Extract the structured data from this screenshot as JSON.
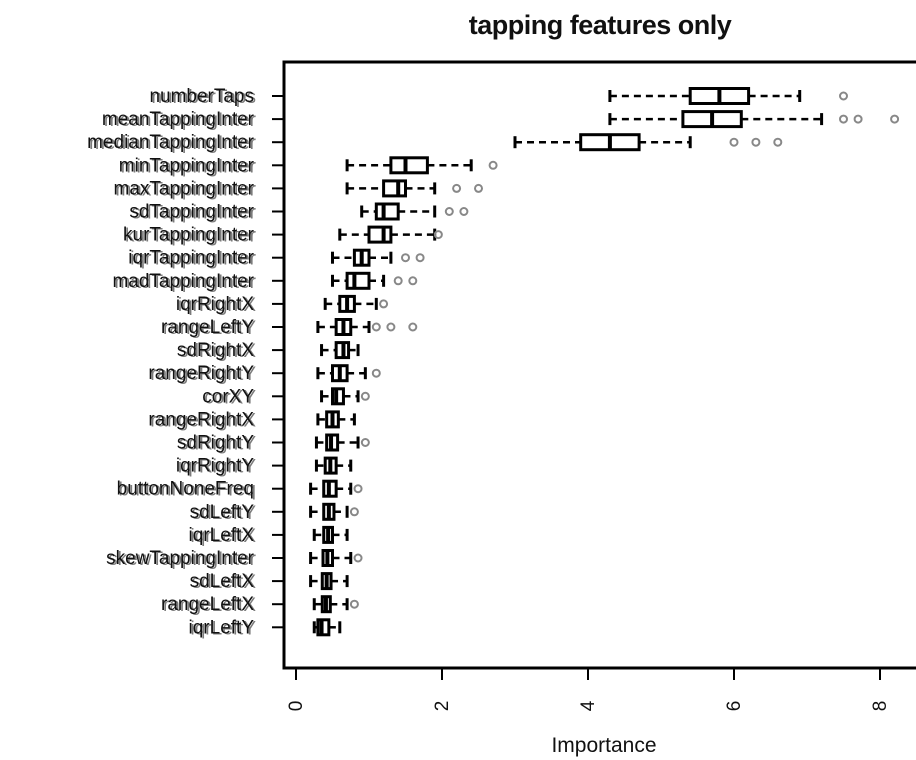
{
  "chart_data": {
    "type": "boxplot",
    "orientation": "horizontal",
    "title": "tapping features only",
    "xlabel": "Importance",
    "ylabel": "",
    "xlim": [
      -0.2,
      8.4
    ],
    "xticks": [
      "0",
      "2",
      "4",
      "6",
      "8"
    ],
    "grid": false,
    "legend": "none",
    "colors": {
      "box": "#000000",
      "outlier": "#888888",
      "label_shadow": "#c8a070"
    },
    "features": [
      {
        "name": "numberTaps",
        "whisker_low": 4.3,
        "q1": 5.4,
        "median": 5.8,
        "q3": 6.2,
        "whisker_high": 6.9,
        "outliers": [
          7.5
        ]
      },
      {
        "name": "meanTappingInter",
        "whisker_low": 4.3,
        "q1": 5.3,
        "median": 5.7,
        "q3": 6.1,
        "whisker_high": 7.2,
        "outliers": [
          7.5,
          7.7,
          8.2
        ]
      },
      {
        "name": "medianTappingInter",
        "whisker_low": 3.0,
        "q1": 3.9,
        "median": 4.3,
        "q3": 4.7,
        "whisker_high": 5.4,
        "outliers": [
          6.0,
          6.3,
          6.6
        ]
      },
      {
        "name": "minTappingInter",
        "whisker_low": 0.7,
        "q1": 1.3,
        "median": 1.5,
        "q3": 1.8,
        "whisker_high": 2.4,
        "outliers": [
          2.7
        ]
      },
      {
        "name": "maxTappingInter",
        "whisker_low": 0.7,
        "q1": 1.2,
        "median": 1.4,
        "q3": 1.5,
        "whisker_high": 1.9,
        "outliers": [
          2.2,
          2.5
        ]
      },
      {
        "name": "sdTappingInter",
        "whisker_low": 0.9,
        "q1": 1.1,
        "median": 1.2,
        "q3": 1.4,
        "whisker_high": 1.9,
        "outliers": [
          2.1,
          2.3
        ]
      },
      {
        "name": "kurTappingInter",
        "whisker_low": 0.6,
        "q1": 1.0,
        "median": 1.2,
        "q3": 1.3,
        "whisker_high": 1.9,
        "outliers": [
          1.95
        ]
      },
      {
        "name": "iqrTappingInter",
        "whisker_low": 0.5,
        "q1": 0.8,
        "median": 0.9,
        "q3": 1.0,
        "whisker_high": 1.3,
        "outliers": [
          1.5,
          1.7
        ]
      },
      {
        "name": "madTappingInter",
        "whisker_low": 0.5,
        "q1": 0.7,
        "median": 0.8,
        "q3": 1.0,
        "whisker_high": 1.2,
        "outliers": [
          1.4,
          1.6
        ]
      },
      {
        "name": "iqrRightX",
        "whisker_low": 0.4,
        "q1": 0.6,
        "median": 0.7,
        "q3": 0.8,
        "whisker_high": 1.1,
        "outliers": [
          1.2
        ]
      },
      {
        "name": "rangeLeftY",
        "whisker_low": 0.3,
        "q1": 0.55,
        "median": 0.65,
        "q3": 0.75,
        "whisker_high": 1.0,
        "outliers": [
          1.1,
          1.3,
          1.6
        ]
      },
      {
        "name": "sdRightX",
        "whisker_low": 0.35,
        "q1": 0.55,
        "median": 0.65,
        "q3": 0.72,
        "whisker_high": 0.85,
        "outliers": []
      },
      {
        "name": "rangeRightY",
        "whisker_low": 0.3,
        "q1": 0.5,
        "median": 0.6,
        "q3": 0.7,
        "whisker_high": 0.95,
        "outliers": [
          1.1
        ]
      },
      {
        "name": "corXY",
        "whisker_low": 0.35,
        "q1": 0.5,
        "median": 0.55,
        "q3": 0.65,
        "whisker_high": 0.85,
        "outliers": [
          0.95
        ]
      },
      {
        "name": "rangeRightX",
        "whisker_low": 0.3,
        "q1": 0.42,
        "median": 0.5,
        "q3": 0.58,
        "whisker_high": 0.8,
        "outliers": []
      },
      {
        "name": "sdRightY",
        "whisker_low": 0.28,
        "q1": 0.42,
        "median": 0.48,
        "q3": 0.57,
        "whisker_high": 0.85,
        "outliers": [
          0.95
        ]
      },
      {
        "name": "iqrRightY",
        "whisker_low": 0.28,
        "q1": 0.4,
        "median": 0.47,
        "q3": 0.55,
        "whisker_high": 0.75,
        "outliers": []
      },
      {
        "name": "buttonNoneFreq",
        "whisker_low": 0.2,
        "q1": 0.38,
        "median": 0.45,
        "q3": 0.55,
        "whisker_high": 0.75,
        "outliers": [
          0.85
        ]
      },
      {
        "name": "sdLeftY",
        "whisker_low": 0.2,
        "q1": 0.38,
        "median": 0.45,
        "q3": 0.52,
        "whisker_high": 0.7,
        "outliers": [
          0.8
        ]
      },
      {
        "name": "iqrLeftX",
        "whisker_low": 0.25,
        "q1": 0.38,
        "median": 0.44,
        "q3": 0.5,
        "whisker_high": 0.7,
        "outliers": []
      },
      {
        "name": "skewTappingInter",
        "whisker_low": 0.2,
        "q1": 0.37,
        "median": 0.43,
        "q3": 0.5,
        "whisker_high": 0.75,
        "outliers": [
          0.85
        ]
      },
      {
        "name": "sdLeftX",
        "whisker_low": 0.2,
        "q1": 0.36,
        "median": 0.42,
        "q3": 0.48,
        "whisker_high": 0.7,
        "outliers": []
      },
      {
        "name": "rangeLeftX",
        "whisker_low": 0.25,
        "q1": 0.36,
        "median": 0.41,
        "q3": 0.47,
        "whisker_high": 0.7,
        "outliers": [
          0.8
        ]
      },
      {
        "name": "iqrLeftY",
        "whisker_low": 0.25,
        "q1": 0.3,
        "median": 0.35,
        "q3": 0.45,
        "whisker_high": 0.6,
        "outliers": []
      }
    ]
  }
}
